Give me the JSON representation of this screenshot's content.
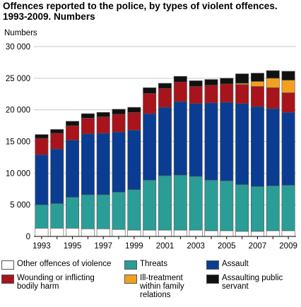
{
  "chart_data": {
    "type": "bar",
    "stacked": true,
    "title": "Offences reported to the police, by types of violent offences. 1993-2009. Numbers",
    "ylabel": "Numbers",
    "xlabel": "",
    "ylim": [
      0,
      30000
    ],
    "yticks": [
      0,
      5000,
      10000,
      15000,
      20000,
      25000,
      30000
    ],
    "ytick_labels": [
      "0",
      "5 000",
      "10 000",
      "15 000",
      "20 000",
      "25 000",
      "30 000"
    ],
    "grid": true,
    "legend_position": "bottom",
    "categories": [
      "1993",
      "1994",
      "1995",
      "1996",
      "1997",
      "1998",
      "1999",
      "2000",
      "2001",
      "2002",
      "2003",
      "2004",
      "2005",
      "2006",
      "2007",
      "2008",
      "2009"
    ],
    "xtick_labels": [
      "1993",
      "1995",
      "1997",
      "1999",
      "2001",
      "2003",
      "2005",
      "2007",
      "2009"
    ],
    "series": [
      {
        "name": "Other offences of violence",
        "color": "#ffffff",
        "values": [
          1300,
          1300,
          1300,
          1200,
          1200,
          1100,
          1000,
          1000,
          1000,
          1000,
          1000,
          900,
          900,
          800,
          800,
          900,
          900
        ]
      },
      {
        "name": "Threats",
        "color": "#2a9d97",
        "values": [
          3700,
          3900,
          4900,
          5400,
          5400,
          5900,
          6400,
          7900,
          8600,
          8700,
          8500,
          8000,
          7900,
          7400,
          7100,
          7100,
          7200
        ]
      },
      {
        "name": "Assault",
        "color": "#0a3d91",
        "values": [
          7900,
          8600,
          9000,
          9600,
          9700,
          9500,
          9400,
          10500,
          10800,
          11600,
          11500,
          12200,
          12400,
          12800,
          12600,
          12200,
          11500
        ]
      },
      {
        "name": "Wounding or inflicting\nbodily harm",
        "color": "#a8141c",
        "values": [
          2600,
          2500,
          2300,
          2500,
          2600,
          2800,
          2800,
          3200,
          3000,
          3100,
          2700,
          2800,
          2900,
          3000,
          3200,
          3300,
          3100
        ]
      },
      {
        "name": "Ill-treatment\nwithin family\nrelations",
        "color": "#f3a01e",
        "values": [
          0,
          0,
          0,
          0,
          0,
          0,
          0,
          0,
          0,
          0,
          0,
          0,
          0,
          200,
          800,
          1500,
          2000
        ]
      },
      {
        "name": "Assaulting public\nservant",
        "color": "#111111",
        "values": [
          600,
          600,
          700,
          700,
          700,
          800,
          800,
          900,
          800,
          900,
          900,
          900,
          900,
          1500,
          1300,
          1200,
          1400
        ]
      }
    ]
  }
}
